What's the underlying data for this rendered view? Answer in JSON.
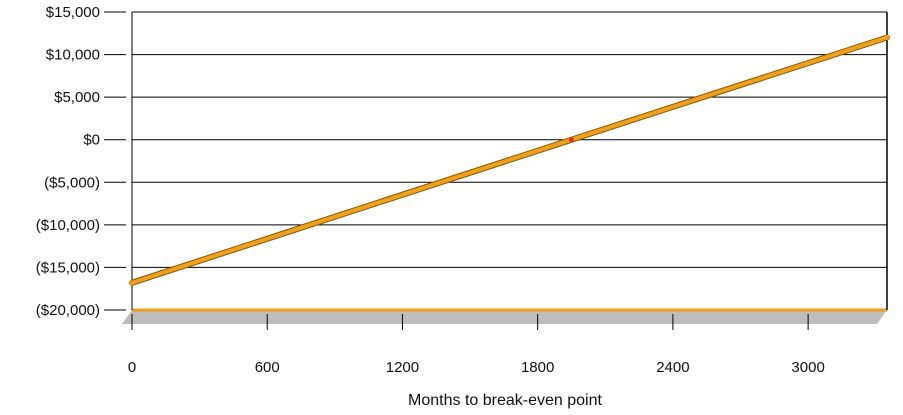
{
  "chart_data": {
    "type": "line",
    "title": "",
    "xlabel": "Months to break-even point",
    "ylabel": "",
    "x_ticks": [
      "0",
      "600",
      "1200",
      "1800",
      "2400",
      "3000"
    ],
    "x_tick_values": [
      0,
      600,
      1200,
      1800,
      2400,
      3000
    ],
    "y_ticks": [
      "$15,000",
      "$10,000",
      "$5,000",
      "$0",
      "($5,000)",
      "($10,000)",
      "($15,000)",
      "($20,000)"
    ],
    "y_tick_values": [
      15000,
      10000,
      5000,
      0,
      -5000,
      -10000,
      -15000,
      -20000
    ],
    "xlim": [
      0,
      3350
    ],
    "ylim": [
      -20000,
      15000
    ],
    "grid": "horizontal",
    "series": [
      {
        "x": [
          0,
          1950,
          3350
        ],
        "y": [
          -16800,
          0,
          12000
        ]
      }
    ],
    "colors": {
      "line": "#f0a020",
      "line_dark": "#8a5a00",
      "zero_cross": "#e03020",
      "grid": "#000000",
      "floor": "#f0a020",
      "floor_shade": "#bdbdbd"
    }
  }
}
